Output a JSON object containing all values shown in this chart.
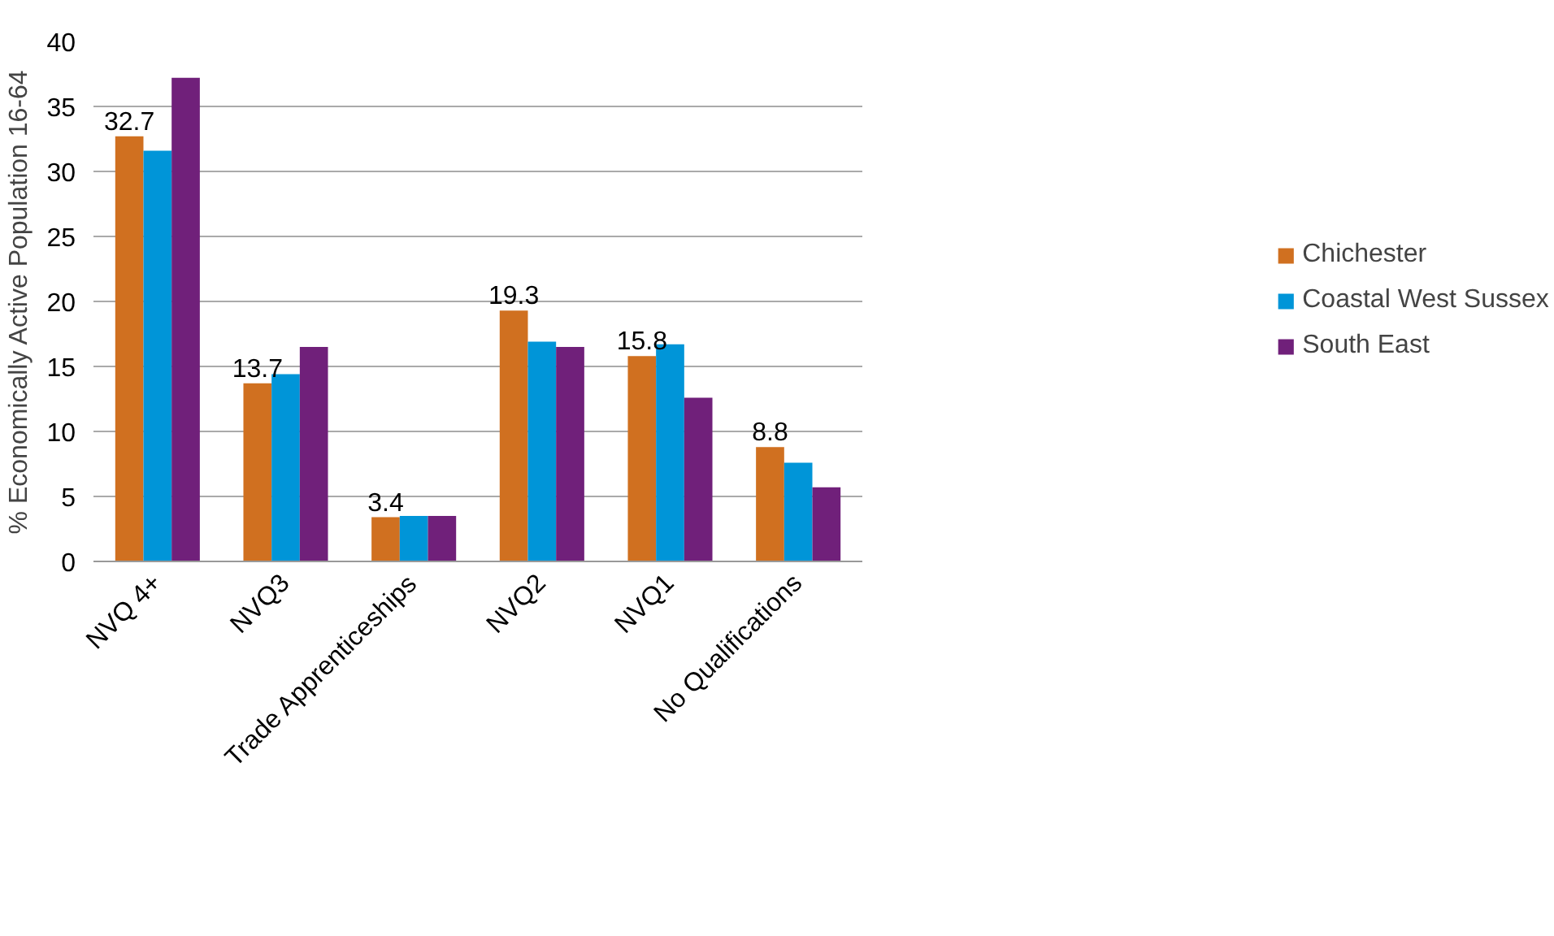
{
  "chart_data": {
    "type": "bar",
    "ylabel": "% Economically Active Population 16-64",
    "categories": [
      "NVQ 4+",
      "NVQ3",
      "Trade Apprenticeships",
      "NVQ2",
      "NVQ1",
      "No Qualifications"
    ],
    "series": [
      {
        "name": "Chichester",
        "color": "#d07020",
        "values": [
          32.7,
          13.7,
          3.4,
          19.3,
          15.8,
          8.8
        ],
        "value_labels": [
          "32.7",
          "13.7",
          "3.4",
          "19.3",
          "15.8",
          "8.8"
        ]
      },
      {
        "name": "Coastal West Sussex",
        "color": "#0095d8",
        "values": [
          31.6,
          14.4,
          3.5,
          16.9,
          16.7,
          7.6
        ]
      },
      {
        "name": "South East",
        "color": "#70207a",
        "values": [
          37.2,
          16.5,
          3.5,
          16.5,
          12.6,
          5.7
        ]
      }
    ],
    "ylim": [
      0,
      40
    ],
    "yticks": [
      0,
      5,
      10,
      15,
      20,
      25,
      30,
      35,
      40
    ],
    "grid": "y",
    "legend": "right"
  }
}
